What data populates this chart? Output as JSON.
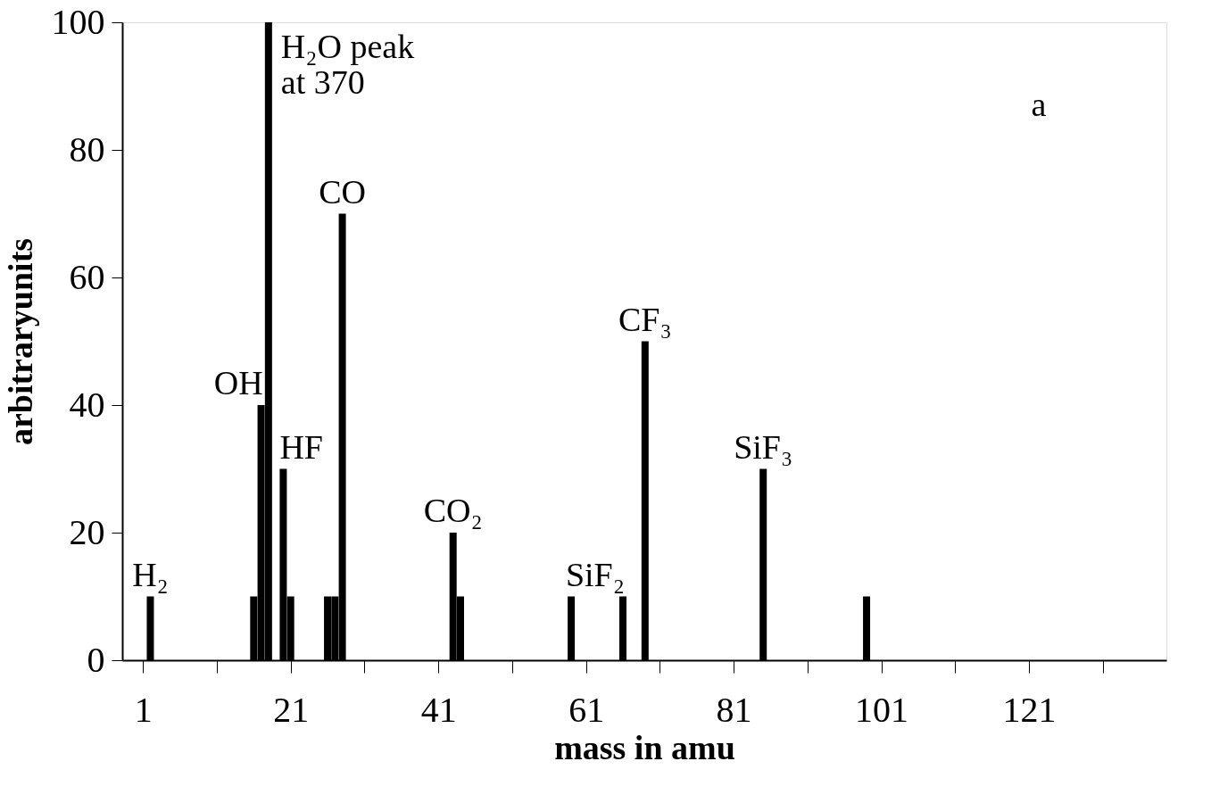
{
  "chart_data": {
    "type": "bar",
    "xlabel": "mass in amu",
    "ylabel": "arbitraryunits",
    "series": [
      {
        "color": "#000000",
        "x": [
          2,
          16,
          17,
          18,
          20,
          21,
          26,
          27,
          28,
          43,
          44,
          59,
          66,
          69,
          85,
          99
        ],
        "values": [
          10,
          10,
          40,
          100,
          30,
          10,
          10,
          10,
          70,
          20,
          10,
          10,
          10,
          50,
          30,
          10
        ]
      }
    ],
    "xlim": [
      -1.2,
      139
    ],
    "xticks": [
      1,
      {
        "value": 11,
        "label": null
      },
      21,
      {
        "value": 31,
        "label": null
      },
      41,
      {
        "value": 51,
        "label": null
      },
      61,
      {
        "value": 71,
        "label": null
      },
      81,
      {
        "value": 91,
        "label": null
      },
      101,
      {
        "value": 111,
        "label": null
      },
      121,
      {
        "value": 131,
        "label": null
      }
    ],
    "ylim": [
      0,
      100
    ],
    "yticks": [
      0,
      20,
      40,
      60,
      80,
      100
    ],
    "grid": false,
    "annotations": [
      {
        "text": "H₂",
        "x": 2,
        "y": 10
      },
      {
        "text": "OH",
        "x": 17,
        "y": 40
      },
      {
        "text": "H₂O peak\nat 370",
        "x": 18,
        "y": 100
      },
      {
        "text": "HF",
        "x": 20,
        "y": 30
      },
      {
        "text": "CO",
        "x": 28,
        "y": 70
      },
      {
        "text": "CO₂",
        "x": 43,
        "y": 20
      },
      {
        "text": "SiF₂",
        "x": 66,
        "y": 10
      },
      {
        "text": "CF₃",
        "x": 69,
        "y": 50
      },
      {
        "text": "SiF₃",
        "x": 85,
        "y": 30
      },
      "a"
    ]
  }
}
